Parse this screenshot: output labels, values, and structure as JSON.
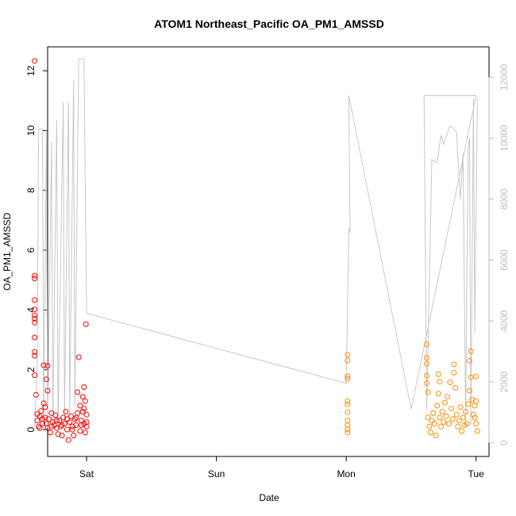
{
  "chart_data": {
    "type": "scatter",
    "title": "ATOM1 Northeast_Pacific OA_PM1_AMSSD",
    "xlabel": "Date",
    "ylabel": "OA_PM1_AMSSD",
    "x_ticks": [
      "Sat",
      "Sun",
      "Mon",
      "Tue"
    ],
    "xlim_days": [
      -0.3,
      3.1
    ],
    "ylim": [
      -0.9,
      12.8
    ],
    "y_ticks": [
      0,
      2,
      4,
      6,
      8,
      10,
      12
    ],
    "y2_ticks": [
      0,
      2000,
      4000,
      6000,
      8000,
      10000,
      12000
    ],
    "y2lim": [
      -450,
      13000
    ],
    "grid": false,
    "series": [
      {
        "name": "",
        "kind": "points",
        "color": "#ff0000",
        "points": [
          [
            -0.4,
            12.33
          ],
          [
            -0.4,
            5.15
          ],
          [
            -0.4,
            5.05
          ],
          [
            -0.4,
            4.33
          ],
          [
            -0.4,
            4.02
          ],
          [
            -0.4,
            3.82
          ],
          [
            -0.4,
            3.71
          ],
          [
            -0.4,
            3.58
          ],
          [
            -0.4,
            3.08
          ],
          [
            -0.4,
            2.6
          ],
          [
            -0.4,
            2.47
          ],
          [
            -0.4,
            1.82
          ],
          [
            -0.39,
            1.16
          ],
          [
            -0.38,
            0.52
          ],
          [
            -0.38,
            0.3
          ],
          [
            -0.37,
            0.1
          ],
          [
            -0.36,
            0.45
          ],
          [
            -0.35,
            0.62
          ],
          [
            -0.34,
            0.2
          ],
          [
            -0.33,
            2.15
          ],
          [
            -0.33,
            0.88
          ],
          [
            -0.32,
            0.75
          ],
          [
            -0.32,
            0.4
          ],
          [
            -0.31,
            1.68
          ],
          [
            -0.3,
            2.13
          ],
          [
            -0.3,
            1.3
          ],
          [
            -0.3,
            0.05
          ],
          [
            -0.29,
            0.35
          ],
          [
            -0.28,
            -0.1
          ],
          [
            -0.27,
            0.55
          ],
          [
            -0.26,
            0.25
          ],
          [
            -0.25,
            0.15
          ],
          [
            -0.24,
            0.48
          ],
          [
            -0.23,
            0.05
          ],
          [
            -0.22,
            -0.15
          ],
          [
            -0.21,
            0.3
          ],
          [
            -0.2,
            0.1
          ],
          [
            -0.19,
            -0.2
          ],
          [
            -0.18,
            0.4
          ],
          [
            -0.17,
            0.2
          ],
          [
            -0.16,
            0.6
          ],
          [
            -0.15,
            0.0
          ],
          [
            -0.14,
            -0.35
          ],
          [
            -0.13,
            0.25
          ],
          [
            -0.12,
            0.45
          ],
          [
            -0.11,
            0.1
          ],
          [
            -0.1,
            -0.2
          ],
          [
            -0.09,
            0.35
          ],
          [
            -0.08,
            0.15
          ],
          [
            -0.07,
            0.55
          ],
          [
            -0.07,
            1.25
          ],
          [
            -0.06,
            2.42
          ],
          [
            -0.05,
            0.8
          ],
          [
            -0.05,
            -0.05
          ],
          [
            -0.04,
            0.3
          ],
          [
            -0.03,
            1.1
          ],
          [
            -0.03,
            0.6
          ],
          [
            -0.02,
            1.42
          ],
          [
            -0.02,
            0.2
          ],
          [
            -0.01,
            0.95
          ],
          [
            -0.01,
            -0.1
          ],
          [
            0.0,
            0.5
          ],
          [
            0.0,
            0.25
          ],
          [
            -0.005,
            3.52
          ],
          [
            -0.36,
            0.05
          ],
          [
            -0.34,
            0.35
          ],
          [
            -0.31,
            0.2
          ],
          [
            -0.27,
            0.1
          ],
          [
            -0.23,
            0.3
          ],
          [
            -0.19,
            0.15
          ],
          [
            -0.15,
            0.35
          ],
          [
            -0.11,
            0.0
          ],
          [
            -0.08,
            0.4
          ],
          [
            -0.04,
            0.15
          ],
          [
            -0.02,
            0.7
          ],
          [
            0.0,
            0.1
          ]
        ]
      },
      {
        "name": "",
        "kind": "points",
        "color": "#ff8c00",
        "points": [
          [
            2.01,
            2.5
          ],
          [
            2.01,
            2.31
          ],
          [
            2.01,
            1.78
          ],
          [
            2.01,
            1.7
          ],
          [
            2.01,
            0.95
          ],
          [
            2.01,
            0.85
          ],
          [
            2.01,
            0.58
          ],
          [
            2.01,
            0.3
          ],
          [
            2.01,
            0.15
          ],
          [
            2.01,
            0.0
          ],
          [
            2.01,
            -0.1
          ],
          [
            2.62,
            2.85
          ],
          [
            2.62,
            2.4
          ],
          [
            2.62,
            2.2
          ],
          [
            2.62,
            1.8
          ],
          [
            2.62,
            1.55
          ],
          [
            2.63,
            1.25
          ],
          [
            2.63,
            0.4
          ],
          [
            2.64,
            0.1
          ],
          [
            2.65,
            -0.1
          ],
          [
            2.66,
            0.3
          ],
          [
            2.67,
            0.55
          ],
          [
            2.68,
            0.2
          ],
          [
            2.69,
            -0.2
          ],
          [
            2.7,
            0.8
          ],
          [
            2.71,
            1.2
          ],
          [
            2.71,
            1.85
          ],
          [
            2.72,
            1.6
          ],
          [
            2.72,
            0.4
          ],
          [
            2.73,
            0.1
          ],
          [
            2.74,
            0.6
          ],
          [
            2.75,
            0.25
          ],
          [
            2.76,
            0.9
          ],
          [
            2.77,
            0.45
          ],
          [
            2.78,
            1.1
          ],
          [
            2.79,
            0.2
          ],
          [
            2.8,
            1.58
          ],
          [
            2.81,
            0.7
          ],
          [
            2.82,
            0.35
          ],
          [
            2.83,
            2.18
          ],
          [
            2.83,
            1.9
          ],
          [
            2.84,
            1.4
          ],
          [
            2.85,
            0.5
          ],
          [
            2.86,
            0.1
          ],
          [
            2.87,
            0.3
          ],
          [
            2.88,
            0.75
          ],
          [
            2.89,
            -0.05
          ],
          [
            2.9,
            0.4
          ],
          [
            2.91,
            0.15
          ],
          [
            2.92,
            0.6
          ],
          [
            2.93,
            0.2
          ],
          [
            2.94,
            0.85
          ],
          [
            2.95,
            1.3
          ],
          [
            2.95,
            2.3
          ],
          [
            2.96,
            2.62
          ],
          [
            2.96,
            1.75
          ],
          [
            2.97,
            1.0
          ],
          [
            2.98,
            0.5
          ],
          [
            2.99,
            0.8
          ],
          [
            3.0,
            1.78
          ],
          [
            3.0,
            0.2
          ],
          [
            3.01,
            -0.05
          ],
          [
            3.0,
            0.95
          ],
          [
            2.99,
            0.4
          ]
        ]
      },
      {
        "name": "",
        "kind": "line",
        "axis": "right",
        "color": "#c8c8c8",
        "points": [
          [
            -0.4,
            500
          ],
          [
            -0.38,
            2500
          ],
          [
            -0.37,
            10300
          ],
          [
            -0.34,
            10300
          ],
          [
            -0.33,
            600
          ],
          [
            -0.31,
            10300
          ],
          [
            -0.3,
            500
          ],
          [
            -0.27,
            9900
          ],
          [
            -0.26,
            600
          ],
          [
            -0.23,
            10600
          ],
          [
            -0.22,
            500
          ],
          [
            -0.18,
            11200
          ],
          [
            -0.17,
            800
          ],
          [
            -0.14,
            11200
          ],
          [
            -0.13,
            900
          ],
          [
            -0.1,
            11900
          ],
          [
            -0.09,
            1200
          ],
          [
            -0.06,
            12600
          ],
          [
            -0.02,
            12600
          ],
          [
            0.0,
            4250
          ],
          [
            2.0,
            1950
          ],
          [
            2.02,
            7050
          ],
          [
            2.03,
            6900
          ],
          [
            2.02,
            11400
          ],
          [
            2.5,
            1100
          ],
          [
            3.0,
            11400
          ],
          [
            2.6,
            11400
          ],
          [
            2.62,
            1100
          ],
          [
            2.66,
            9300
          ],
          [
            2.7,
            9200
          ],
          [
            2.73,
            10100
          ],
          [
            2.75,
            9800
          ],
          [
            2.77,
            10050
          ],
          [
            2.8,
            10400
          ],
          [
            2.82,
            10350
          ],
          [
            2.85,
            10200
          ],
          [
            2.88,
            8000
          ],
          [
            2.9,
            9500
          ],
          [
            2.92,
            600
          ],
          [
            2.93,
            5600
          ],
          [
            2.94,
            9700
          ],
          [
            2.95,
            10000
          ],
          [
            2.96,
            600
          ],
          [
            2.98,
            11300
          ],
          [
            2.99,
            3600
          ],
          [
            3.01,
            11300
          ]
        ]
      }
    ]
  }
}
